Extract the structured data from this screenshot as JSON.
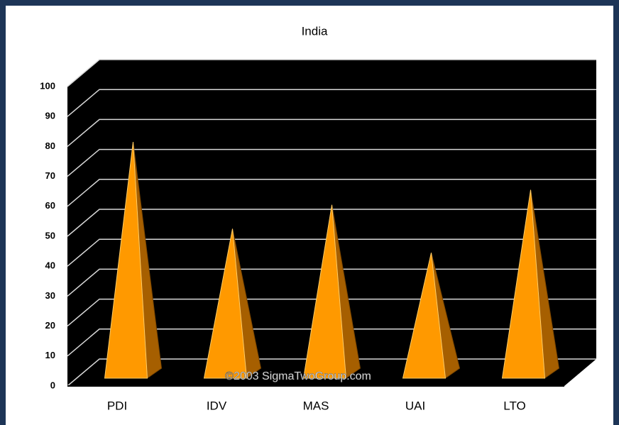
{
  "chart_data": {
    "type": "pyramid",
    "title": "India",
    "categories": [
      "PDI",
      "IDV",
      "MAS",
      "UAI",
      "LTO"
    ],
    "values": [
      77,
      48,
      56,
      40,
      61
    ],
    "color": "#ff9900",
    "ylim": [
      0,
      100
    ],
    "yticks": [
      0,
      10,
      20,
      30,
      40,
      50,
      60,
      70,
      80,
      90,
      100
    ],
    "grid": true,
    "annotation": "©2003 SigmaTwoGroup.com"
  }
}
